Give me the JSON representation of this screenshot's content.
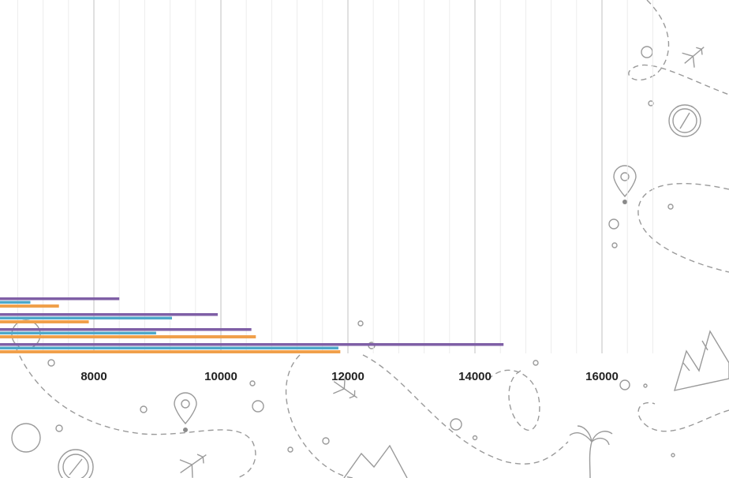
{
  "chart_data": {
    "type": "bar",
    "orientation": "horizontal",
    "title": "",
    "xlabel": "",
    "ylabel": "",
    "xlim": [
      6500,
      17000
    ],
    "major_ticks": [
      8000,
      10000,
      12000,
      14000,
      16000
    ],
    "minor_step": 400,
    "grid": true,
    "groups": [
      {
        "bars": [
          {
            "series": 1,
            "value": 8400
          },
          {
            "series": 2,
            "value": 7000
          },
          {
            "series": 3,
            "value": 7450
          }
        ]
      },
      {
        "bars": [
          {
            "series": 1,
            "value": 9950
          },
          {
            "series": 2,
            "value": 9230
          },
          {
            "series": 3,
            "value": 7920
          }
        ]
      },
      {
        "bars": [
          {
            "series": 1,
            "value": 10480
          },
          {
            "series": 2,
            "value": 8980
          },
          {
            "series": 3,
            "value": 10550
          }
        ]
      },
      {
        "bars": [
          {
            "series": 1,
            "value": 14450
          },
          {
            "series": 2,
            "value": 11850
          },
          {
            "series": 3,
            "value": 11880
          }
        ]
      }
    ],
    "colors": {
      "1": "#7f5fa6",
      "2": "#4ea8c9",
      "3": "#f0a04b"
    }
  }
}
